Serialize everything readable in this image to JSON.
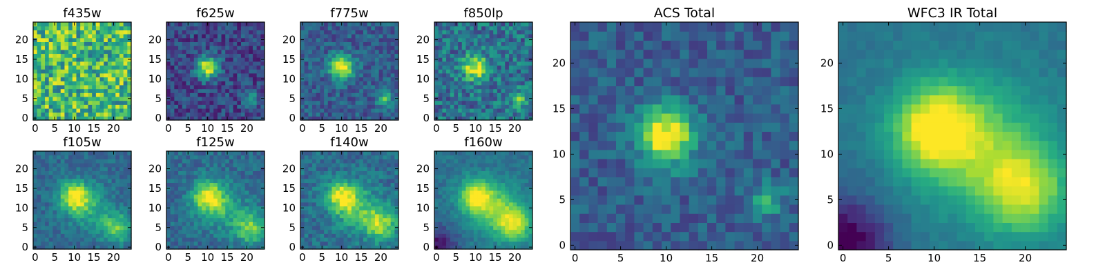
{
  "figure": {
    "description_colormap": "viridis",
    "background": "#ffffff"
  },
  "chart_data": [
    {
      "type": "heatmap",
      "title": "f435w",
      "grid": false,
      "colormap": "viridis",
      "xlim": [
        -0.5,
        24.5
      ],
      "ylim": [
        -0.5,
        24.5
      ],
      "x_ticks": [
        0,
        5,
        10,
        15,
        20
      ],
      "y_ticks": [
        0,
        5,
        10,
        15,
        20
      ],
      "size": [
        25,
        25
      ],
      "sources": [],
      "background_level": 0.68,
      "noise": 0.3,
      "seed": 11
    },
    {
      "type": "heatmap",
      "title": "f625w",
      "grid": false,
      "colormap": "viridis",
      "xlim": [
        -0.5,
        24.5
      ],
      "ylim": [
        -0.5,
        24.5
      ],
      "x_ticks": [
        0,
        5,
        10,
        15,
        20
      ],
      "y_ticks": [
        0,
        5,
        10,
        15,
        20
      ],
      "size": [
        25,
        25
      ],
      "sources": [
        {
          "x": 10,
          "y": 13,
          "amplitude": 0.75,
          "sigma": 2.0
        },
        {
          "x": 21,
          "y": 5,
          "amplitude": 0.35,
          "sigma": 1.4
        }
      ],
      "background_level": 0.22,
      "noise": 0.16,
      "seed": 23
    },
    {
      "type": "heatmap",
      "title": "f775w",
      "grid": false,
      "colormap": "viridis",
      "xlim": [
        -0.5,
        24.5
      ],
      "ylim": [
        -0.5,
        24.5
      ],
      "x_ticks": [
        0,
        5,
        10,
        15,
        20
      ],
      "y_ticks": [
        0,
        5,
        10,
        15,
        20
      ],
      "size": [
        25,
        25
      ],
      "sources": [
        {
          "x": 10,
          "y": 13,
          "amplitude": 0.72,
          "sigma": 2.1
        },
        {
          "x": 21,
          "y": 5,
          "amplitude": 0.4,
          "sigma": 1.4
        }
      ],
      "background_level": 0.3,
      "noise": 0.14,
      "seed": 37
    },
    {
      "type": "heatmap",
      "title": "f850lp",
      "grid": false,
      "colormap": "viridis",
      "xlim": [
        -0.5,
        24.5
      ],
      "ylim": [
        -0.5,
        24.5
      ],
      "x_ticks": [
        0,
        5,
        10,
        15,
        20
      ],
      "y_ticks": [
        0,
        5,
        10,
        15,
        20
      ],
      "size": [
        25,
        25
      ],
      "sources": [
        {
          "x": 10,
          "y": 13,
          "amplitude": 0.62,
          "sigma": 2.2
        },
        {
          "x": 21,
          "y": 5,
          "amplitude": 0.35,
          "sigma": 1.5
        }
      ],
      "background_level": 0.38,
      "noise": 0.2,
      "seed": 41
    },
    {
      "type": "heatmap",
      "title": "f105w",
      "grid": false,
      "colormap": "viridis",
      "xlim": [
        -0.5,
        24.5
      ],
      "ylim": [
        -0.5,
        24.5
      ],
      "x_ticks": [
        0,
        5,
        10,
        15,
        20
      ],
      "y_ticks": [
        0,
        5,
        10,
        15,
        20
      ],
      "size": [
        25,
        25
      ],
      "sources": [
        {
          "x": 10,
          "y": 13,
          "amplitude": 0.6,
          "sigma": 2.6
        },
        {
          "x": 21,
          "y": 5,
          "amplitude": 0.42,
          "sigma": 2.6
        },
        {
          "x": 14,
          "y": 10,
          "amplitude": 0.25,
          "sigma": 4.0
        }
      ],
      "background_level": 0.35,
      "noise": 0.1,
      "seed": 53
    },
    {
      "type": "heatmap",
      "title": "f125w",
      "grid": false,
      "colormap": "viridis",
      "xlim": [
        -0.5,
        24.5
      ],
      "ylim": [
        -0.5,
        24.5
      ],
      "x_ticks": [
        0,
        5,
        10,
        15,
        20
      ],
      "y_ticks": [
        0,
        5,
        10,
        15,
        20
      ],
      "size": [
        25,
        25
      ],
      "sources": [
        {
          "x": 10,
          "y": 13,
          "amplitude": 0.58,
          "sigma": 2.8
        },
        {
          "x": 21,
          "y": 5,
          "amplitude": 0.45,
          "sigma": 2.8
        },
        {
          "x": 14,
          "y": 10,
          "amplitude": 0.25,
          "sigma": 4.0
        }
      ],
      "background_level": 0.35,
      "noise": 0.11,
      "seed": 67
    },
    {
      "type": "heatmap",
      "title": "f140w",
      "grid": false,
      "colormap": "viridis",
      "xlim": [
        -0.5,
        24.5
      ],
      "ylim": [
        -0.5,
        24.5
      ],
      "x_ticks": [
        0,
        5,
        10,
        15,
        20
      ],
      "y_ticks": [
        0,
        5,
        10,
        15,
        20
      ],
      "size": [
        25,
        25
      ],
      "sources": [
        {
          "x": 10,
          "y": 13,
          "amplitude": 0.55,
          "sigma": 2.8
        },
        {
          "x": 20,
          "y": 6,
          "amplitude": 0.5,
          "sigma": 3.0
        },
        {
          "x": 14,
          "y": 10,
          "amplitude": 0.3,
          "sigma": 4.0
        }
      ],
      "background_level": 0.36,
      "noise": 0.12,
      "seed": 71
    },
    {
      "type": "heatmap",
      "title": "f160w",
      "grid": false,
      "colormap": "viridis",
      "xlim": [
        -0.5,
        24.5
      ],
      "ylim": [
        -0.5,
        24.5
      ],
      "x_ticks": [
        0,
        5,
        10,
        15,
        20
      ],
      "y_ticks": [
        0,
        5,
        10,
        15,
        20
      ],
      "size": [
        25,
        25
      ],
      "sources": [
        {
          "x": 10,
          "y": 13,
          "amplitude": 0.55,
          "sigma": 3.0
        },
        {
          "x": 20,
          "y": 6,
          "amplitude": 0.5,
          "sigma": 3.2
        },
        {
          "x": 15,
          "y": 10,
          "amplitude": 0.35,
          "sigma": 4.5
        }
      ],
      "background_level": 0.38,
      "noise": 0.07,
      "seed": 83,
      "dark_corner": [
        0,
        0,
        0.35
      ]
    },
    {
      "type": "heatmap",
      "title": "ACS Total",
      "grid": false,
      "colormap": "viridis",
      "xlim": [
        -0.5,
        24.5
      ],
      "ylim": [
        -0.5,
        24.5
      ],
      "x_ticks": [
        0,
        5,
        10,
        15,
        20
      ],
      "y_ticks": [
        0,
        5,
        10,
        15,
        20
      ],
      "size": [
        25,
        25
      ],
      "sources": [
        {
          "x": 10,
          "y": 12,
          "amplitude": 0.75,
          "sigma": 2.2
        },
        {
          "x": 21,
          "y": 5,
          "amplitude": 0.35,
          "sigma": 1.3
        }
      ],
      "background_level": 0.3,
      "noise": 0.12,
      "seed": 97
    },
    {
      "type": "heatmap",
      "title": "WFC3 IR Total",
      "grid": false,
      "colormap": "viridis",
      "xlim": [
        -0.5,
        24.5
      ],
      "ylim": [
        -0.5,
        24.5
      ],
      "x_ticks": [
        0,
        5,
        10,
        15,
        20
      ],
      "y_ticks": [
        0,
        5,
        10,
        15,
        20
      ],
      "size": [
        25,
        25
      ],
      "sources": [
        {
          "x": 10,
          "y": 13,
          "amplitude": 0.55,
          "sigma": 3.2
        },
        {
          "x": 20,
          "y": 6,
          "amplitude": 0.45,
          "sigma": 3.4
        },
        {
          "x": 15,
          "y": 11,
          "amplitude": 0.35,
          "sigma": 5.0
        }
      ],
      "background_level": 0.4,
      "noise": 0.04,
      "seed": 101,
      "dark_corner": [
        0,
        0,
        0.45
      ]
    }
  ]
}
